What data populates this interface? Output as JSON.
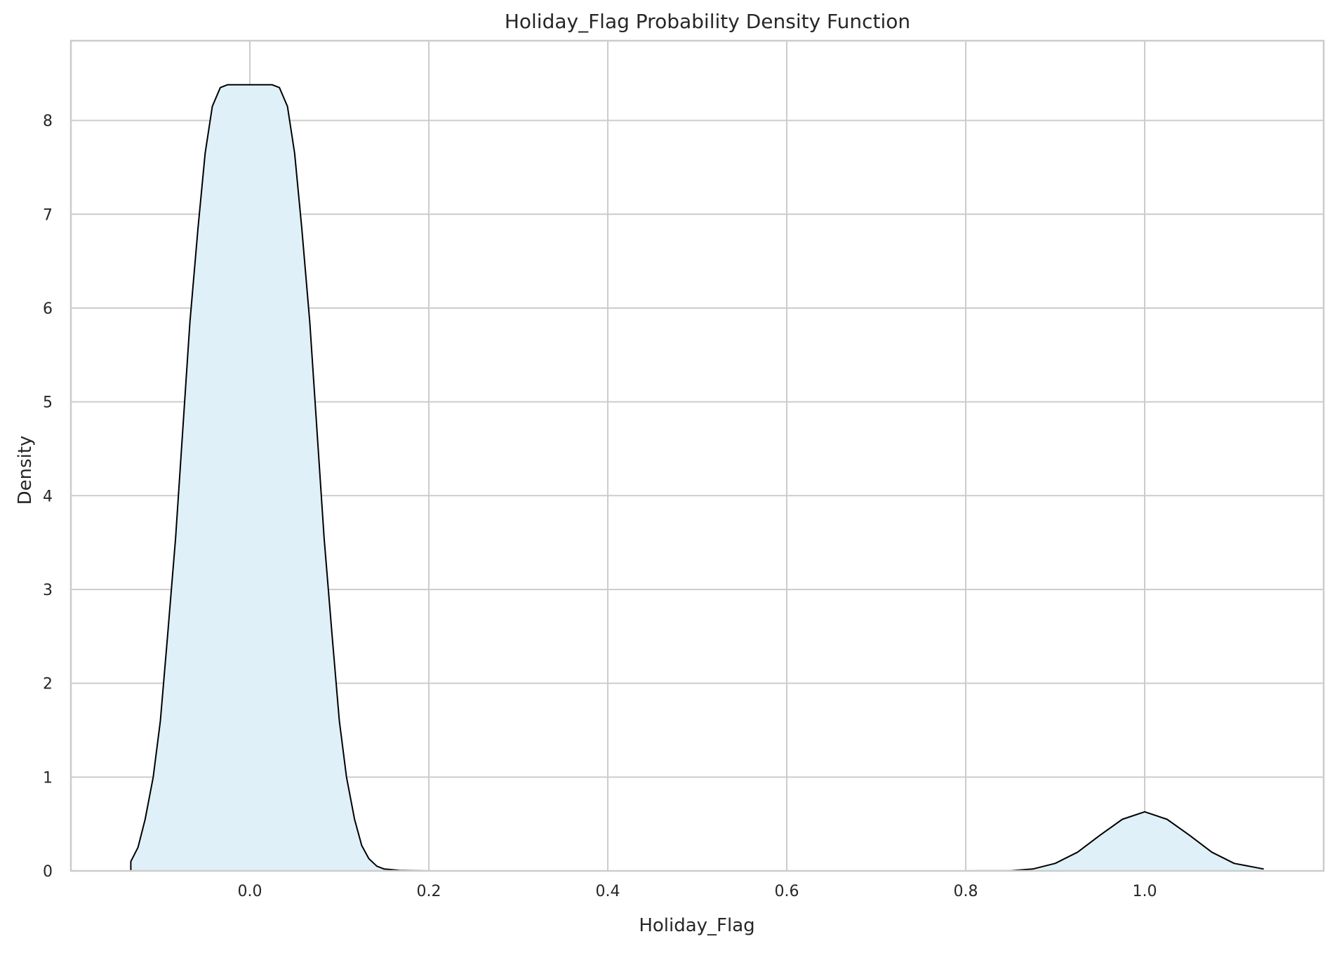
{
  "chart_data": {
    "type": "area",
    "title": "Holiday_Flag Probability Density Function",
    "xlabel": "Holiday_Flag",
    "ylabel": "Density",
    "xlim": [
      -0.2,
      1.2
    ],
    "ylim": [
      0,
      8.85
    ],
    "grid": true,
    "xticks": [
      0.0,
      0.2,
      0.4,
      0.6,
      0.8,
      1.0
    ],
    "xtick_labels": [
      "0.0",
      "0.2",
      "0.4",
      "0.6",
      "0.8",
      "1.0"
    ],
    "yticks": [
      0,
      1,
      2,
      3,
      4,
      5,
      6,
      7,
      8
    ],
    "ytick_labels": [
      "0",
      "1",
      "2",
      "3",
      "4",
      "5",
      "6",
      "7",
      "8"
    ],
    "colors": {
      "fill": "#dff0f8",
      "line": "#000000",
      "grid": "#cccccc",
      "spine": "#cccccc"
    },
    "series": [
      {
        "x": [
          -0.133,
          -0.125,
          -0.117,
          -0.108,
          -0.1,
          -0.092,
          -0.083,
          -0.075,
          -0.067,
          -0.058,
          -0.05,
          -0.042,
          -0.033,
          -0.025,
          -0.017,
          -0.008,
          0.0,
          0.008,
          0.017,
          0.025,
          0.033,
          0.042,
          0.05,
          0.058,
          0.067,
          0.075,
          0.083,
          0.092,
          0.1,
          0.108,
          0.117,
          0.125,
          0.133,
          0.142,
          0.15,
          0.167,
          0.2,
          0.3,
          0.4,
          0.5,
          0.6,
          0.7,
          0.8,
          0.85,
          0.875,
          0.9,
          0.925,
          0.95,
          0.975,
          1.0,
          1.025,
          1.05,
          1.075,
          1.1,
          1.133
        ],
        "y": [
          0.1,
          0.25,
          0.55,
          1.0,
          1.6,
          2.5,
          3.55,
          4.7,
          5.85,
          6.85,
          7.65,
          8.15,
          8.35,
          8.38,
          8.38,
          8.38,
          8.38,
          8.38,
          8.38,
          8.38,
          8.35,
          8.15,
          7.65,
          6.85,
          5.85,
          4.7,
          3.55,
          2.5,
          1.6,
          1.0,
          0.55,
          0.27,
          0.13,
          0.05,
          0.02,
          0.005,
          0.0,
          0.0,
          0.0,
          0.0,
          0.0,
          0.0,
          0.0,
          0.002,
          0.02,
          0.08,
          0.2,
          0.38,
          0.55,
          0.63,
          0.55,
          0.38,
          0.2,
          0.08,
          0.02
        ]
      }
    ]
  }
}
